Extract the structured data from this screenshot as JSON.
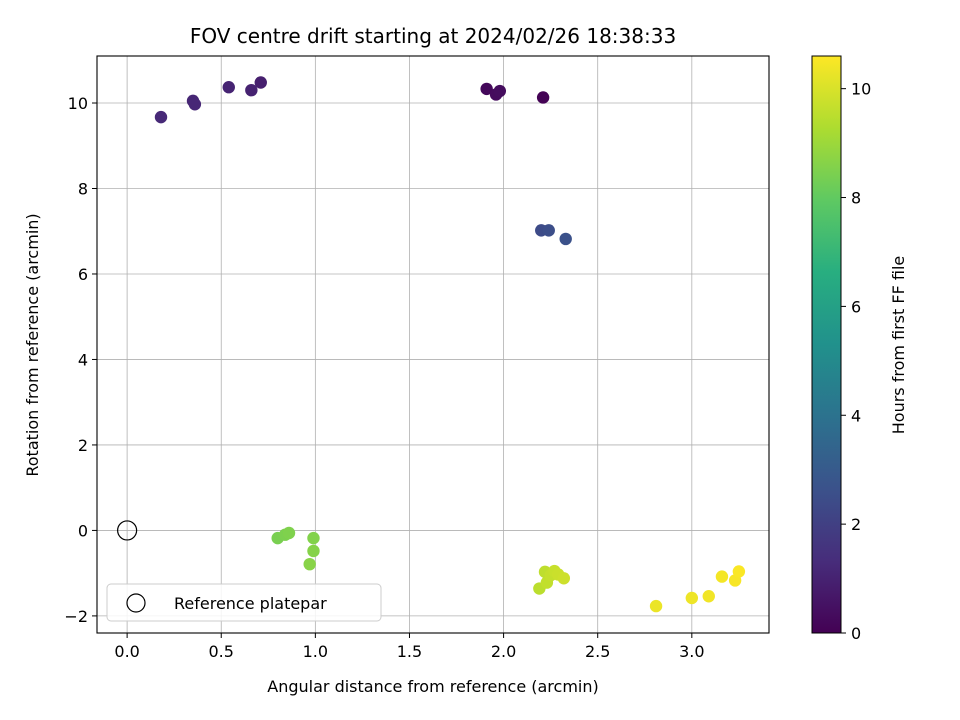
{
  "chart_data": {
    "type": "scatter",
    "title": "FOV centre drift starting at 2024/02/26 18:38:33",
    "xlabel": "Angular distance from reference (arcmin)",
    "ylabel": "Rotation from reference (arcmin)",
    "xlim": [
      -0.16,
      3.41
    ],
    "ylim": [
      -2.4,
      11.1
    ],
    "xticks": [
      0.0,
      0.5,
      1.0,
      1.5,
      2.0,
      2.5,
      3.0
    ],
    "xtick_labels": [
      "0.0",
      "0.5",
      "1.0",
      "1.5",
      "2.0",
      "2.5",
      "3.0"
    ],
    "yticks": [
      -2,
      0,
      2,
      4,
      6,
      8,
      10
    ],
    "ytick_labels": [
      "−2",
      "0",
      "2",
      "4",
      "6",
      "8",
      "10"
    ],
    "grid": true,
    "colorbar": {
      "label": "Hours from first FF file",
      "colormap": "viridis",
      "range": [
        0,
        10.6
      ],
      "ticks": [
        0,
        2,
        4,
        6,
        8,
        10
      ],
      "tick_labels": [
        "0",
        "2",
        "4",
        "6",
        "8",
        "10"
      ]
    },
    "reference": {
      "name": "Reference platepar",
      "x": 0.0,
      "y": 0.0
    },
    "legend": {
      "location": "lower-left",
      "entries": [
        "Reference platepar"
      ]
    },
    "points": [
      {
        "x": 2.21,
        "y": 10.13,
        "hours": 0.05
      },
      {
        "x": 1.91,
        "y": 10.33,
        "hours": 0.2
      },
      {
        "x": 1.96,
        "y": 10.2,
        "hours": 0.3
      },
      {
        "x": 1.98,
        "y": 10.28,
        "hours": 0.35
      },
      {
        "x": 0.71,
        "y": 10.48,
        "hours": 0.9
      },
      {
        "x": 0.66,
        "y": 10.3,
        "hours": 1.0
      },
      {
        "x": 0.54,
        "y": 10.37,
        "hours": 1.05
      },
      {
        "x": 0.35,
        "y": 10.05,
        "hours": 1.1
      },
      {
        "x": 0.36,
        "y": 9.97,
        "hours": 1.15
      },
      {
        "x": 0.18,
        "y": 9.67,
        "hours": 1.2
      },
      {
        "x": 2.2,
        "y": 7.02,
        "hours": 2.4
      },
      {
        "x": 2.24,
        "y": 7.02,
        "hours": 2.5
      },
      {
        "x": 2.33,
        "y": 6.82,
        "hours": 2.6
      },
      {
        "x": 0.8,
        "y": -0.18,
        "hours": 8.4
      },
      {
        "x": 0.84,
        "y": -0.1,
        "hours": 8.45
      },
      {
        "x": 0.86,
        "y": -0.06,
        "hours": 8.5
      },
      {
        "x": 0.99,
        "y": -0.18,
        "hours": 8.55
      },
      {
        "x": 0.99,
        "y": -0.48,
        "hours": 8.6
      },
      {
        "x": 0.97,
        "y": -0.79,
        "hours": 8.65
      },
      {
        "x": 2.19,
        "y": -1.36,
        "hours": 9.5
      },
      {
        "x": 2.22,
        "y": -0.97,
        "hours": 9.55
      },
      {
        "x": 2.23,
        "y": -1.22,
        "hours": 9.6
      },
      {
        "x": 2.25,
        "y": -1.05,
        "hours": 9.65
      },
      {
        "x": 2.27,
        "y": -0.95,
        "hours": 9.7
      },
      {
        "x": 2.29,
        "y": -1.03,
        "hours": 9.75
      },
      {
        "x": 2.32,
        "y": -1.12,
        "hours": 9.8
      },
      {
        "x": 2.81,
        "y": -1.77,
        "hours": 10.3
      },
      {
        "x": 3.0,
        "y": -1.58,
        "hours": 10.35
      },
      {
        "x": 3.09,
        "y": -1.54,
        "hours": 10.4
      },
      {
        "x": 3.16,
        "y": -1.08,
        "hours": 10.45
      },
      {
        "x": 3.23,
        "y": -1.17,
        "hours": 10.5
      },
      {
        "x": 3.25,
        "y": -0.96,
        "hours": 10.55
      }
    ]
  }
}
